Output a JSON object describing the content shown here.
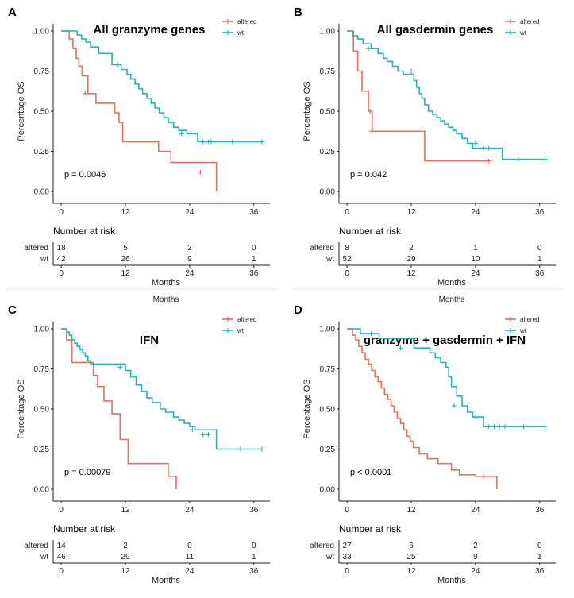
{
  "colors": {
    "altered": "#e8705f",
    "wt": "#21b5bf",
    "axis": "#222222"
  },
  "common": {
    "ylabel": "Percentage OS",
    "xlabel": "Months",
    "risk_title": "Number at risk",
    "xticks": [
      0,
      12,
      24,
      36
    ],
    "yticks": [
      "1.00",
      "0.75",
      "0.50",
      "0.25",
      "0.00"
    ],
    "ghost_label": "Months"
  },
  "chart_data": [
    {
      "type": "line",
      "panel": "A",
      "title": "All granzyme genes",
      "p_value": "p = 0.0046",
      "xlabel": "Months",
      "ylabel": "Percentage OS",
      "xlim": [
        -1.5,
        39
      ],
      "ylim": [
        0,
        1
      ],
      "legend_position": "top-right",
      "series": [
        {
          "name": "altered",
          "color": "#e8705f",
          "x": [
            0,
            1.5,
            2.2,
            2.8,
            3.3,
            3.9,
            5.0,
            6.5,
            10.0,
            10.8,
            11.5,
            18.2,
            20.5,
            29.0
          ],
          "y": [
            1.0,
            0.95,
            0.89,
            0.83,
            0.78,
            0.72,
            0.61,
            0.55,
            0.49,
            0.43,
            0.31,
            0.25,
            0.18,
            0.0
          ],
          "censor_x": [
            4.5,
            26.0
          ],
          "censor_y": [
            0.61,
            0.12
          ]
        },
        {
          "name": "wt",
          "color": "#21b5bf",
          "x": [
            0,
            3.0,
            3.8,
            4.6,
            5.5,
            7.0,
            9.5,
            11.2,
            12.3,
            13.0,
            13.8,
            14.5,
            15.2,
            16.0,
            16.8,
            17.5,
            18.3,
            19.2,
            20.0,
            21.0,
            22.0,
            23.5,
            25.5
          ],
          "y": [
            1.0,
            0.975,
            0.95,
            0.93,
            0.9,
            0.86,
            0.79,
            0.76,
            0.73,
            0.7,
            0.67,
            0.64,
            0.61,
            0.58,
            0.55,
            0.52,
            0.49,
            0.46,
            0.43,
            0.4,
            0.38,
            0.36,
            0.31
          ],
          "censor_x": [
            10.5,
            22.5,
            26.5,
            27.5,
            28.0,
            32.0,
            37.5
          ],
          "censor_y": [
            0.79,
            0.36,
            0.31,
            0.31,
            0.31,
            0.31,
            0.31
          ]
        }
      ],
      "risk_table": {
        "altered": [
          "18",
          "5",
          "2",
          "0"
        ],
        "wt": [
          "42",
          "26",
          "9",
          "1"
        ]
      }
    },
    {
      "type": "line",
      "panel": "B",
      "title": "All gasdermin genes",
      "p_value": "p = 0.042",
      "xlabel": "Months",
      "ylabel": "Percentage OS",
      "xlim": [
        -1.5,
        39
      ],
      "ylim": [
        0,
        1
      ],
      "legend_position": "top-right",
      "series": [
        {
          "name": "altered",
          "color": "#e8705f",
          "x": [
            0,
            1.2,
            2.0,
            2.8,
            4.0,
            4.7,
            14.5
          ],
          "y": [
            1.0,
            0.875,
            0.75,
            0.625,
            0.5,
            0.375,
            0.19
          ],
          "censor_x": [
            4.3,
            4.6,
            26.5
          ],
          "censor_y": [
            0.5,
            0.375,
            0.19
          ]
        },
        {
          "name": "wt",
          "color": "#21b5bf",
          "x": [
            0,
            1.0,
            2.0,
            3.0,
            4.5,
            5.8,
            6.8,
            7.5,
            8.5,
            9.5,
            10.5,
            12.5,
            13.0,
            13.5,
            14.0,
            14.5,
            15.2,
            16.0,
            16.8,
            17.5,
            18.2,
            19.0,
            19.8,
            20.5,
            21.5,
            22.5,
            23.5,
            29.0
          ],
          "y": [
            1.0,
            0.97,
            0.95,
            0.92,
            0.89,
            0.86,
            0.83,
            0.81,
            0.78,
            0.75,
            0.73,
            0.69,
            0.65,
            0.61,
            0.58,
            0.54,
            0.5,
            0.48,
            0.46,
            0.44,
            0.42,
            0.4,
            0.38,
            0.36,
            0.33,
            0.3,
            0.27,
            0.2
          ],
          "censor_x": [
            4.0,
            12.0,
            24.0,
            25.5,
            26.5,
            32.0,
            37.0
          ],
          "censor_y": [
            0.89,
            0.75,
            0.3,
            0.27,
            0.27,
            0.2,
            0.2
          ]
        }
      ],
      "risk_table": {
        "altered": [
          "8",
          "2",
          "1",
          "0"
        ],
        "wt": [
          "52",
          "29",
          "10",
          "1"
        ]
      }
    },
    {
      "type": "line",
      "panel": "C",
      "title": "IFN",
      "p_value": "p = 0.00079",
      "xlabel": "Months",
      "ylabel": "Percentage OS",
      "xlim": [
        -1.5,
        39
      ],
      "ylim": [
        0,
        1
      ],
      "legend_position": "top-right",
      "series": [
        {
          "name": "altered",
          "color": "#e8705f",
          "x": [
            0,
            1.0,
            2.0,
            6.0,
            6.8,
            8.0,
            9.5,
            11.0,
            12.5,
            20.0,
            21.5
          ],
          "y": [
            1.0,
            0.93,
            0.79,
            0.71,
            0.64,
            0.55,
            0.47,
            0.31,
            0.16,
            0.08,
            0.0
          ],
          "censor_x": [
            4.8
          ],
          "censor_y": [
            0.79
          ]
        },
        {
          "name": "wt",
          "color": "#21b5bf",
          "x": [
            0,
            1.0,
            1.5,
            2.0,
            2.5,
            3.0,
            3.5,
            4.0,
            4.5,
            5.0,
            5.5,
            12.0,
            13.0,
            14.0,
            15.0,
            16.0,
            17.0,
            18.5,
            19.5,
            21.0,
            22.0,
            23.0,
            24.0,
            25.0,
            29.0
          ],
          "y": [
            1.0,
            0.98,
            0.96,
            0.93,
            0.91,
            0.89,
            0.87,
            0.85,
            0.83,
            0.8,
            0.78,
            0.74,
            0.7,
            0.65,
            0.61,
            0.57,
            0.54,
            0.5,
            0.48,
            0.45,
            0.43,
            0.41,
            0.39,
            0.37,
            0.25
          ],
          "censor_x": [
            11.0,
            24.5,
            26.5,
            27.5,
            33.5,
            37.5
          ],
          "censor_y": [
            0.76,
            0.37,
            0.34,
            0.34,
            0.25,
            0.25
          ]
        }
      ],
      "risk_table": {
        "altered": [
          "14",
          "2",
          "0",
          "0"
        ],
        "wt": [
          "46",
          "29",
          "11",
          "1"
        ]
      }
    },
    {
      "type": "line",
      "panel": "D",
      "title": "granzyme + gasdermin + IFN",
      "p_value": "p < 0.0001",
      "xlabel": "Months",
      "ylabel": "Percentage OS",
      "xlim": [
        -1.5,
        39
      ],
      "ylim": [
        0,
        1
      ],
      "legend_position": "top-right",
      "series": [
        {
          "name": "altered",
          "color": "#e8705f",
          "x": [
            0,
            1.0,
            1.6,
            2.2,
            2.8,
            3.4,
            4.0,
            4.6,
            5.2,
            5.8,
            6.4,
            7.0,
            7.6,
            8.2,
            8.8,
            9.4,
            10.0,
            10.6,
            11.2,
            11.8,
            12.4,
            13.5,
            15.0,
            17.0,
            19.5,
            21.0,
            24.0,
            28.0
          ],
          "y": [
            1.0,
            0.96,
            0.93,
            0.89,
            0.85,
            0.81,
            0.78,
            0.74,
            0.7,
            0.67,
            0.63,
            0.59,
            0.56,
            0.52,
            0.48,
            0.44,
            0.41,
            0.37,
            0.33,
            0.3,
            0.26,
            0.22,
            0.19,
            0.16,
            0.12,
            0.09,
            0.08,
            0.0
          ],
          "censor_x": [
            25.5
          ],
          "censor_y": [
            0.08
          ]
        },
        {
          "name": "wt",
          "color": "#21b5bf",
          "x": [
            0,
            2.5,
            6.0,
            12.5,
            15.5,
            16.5,
            17.5,
            18.5,
            19.0,
            19.5,
            20.5,
            21.5,
            22.5,
            23.5,
            25.5
          ],
          "y": [
            1.0,
            0.97,
            0.94,
            0.88,
            0.85,
            0.82,
            0.79,
            0.76,
            0.7,
            0.64,
            0.58,
            0.52,
            0.48,
            0.45,
            0.39
          ],
          "censor_x": [
            4.5,
            10.0,
            20.0,
            24.0,
            26.5,
            27.5,
            28.5,
            29.5,
            33.0,
            37.0
          ],
          "censor_y": [
            0.97,
            0.88,
            0.52,
            0.45,
            0.39,
            0.39,
            0.39,
            0.39,
            0.39,
            0.39
          ]
        }
      ],
      "risk_table": {
        "altered": [
          "27",
          "6",
          "2",
          "0"
        ],
        "wt": [
          "33",
          "25",
          "9",
          "1"
        ]
      }
    }
  ]
}
